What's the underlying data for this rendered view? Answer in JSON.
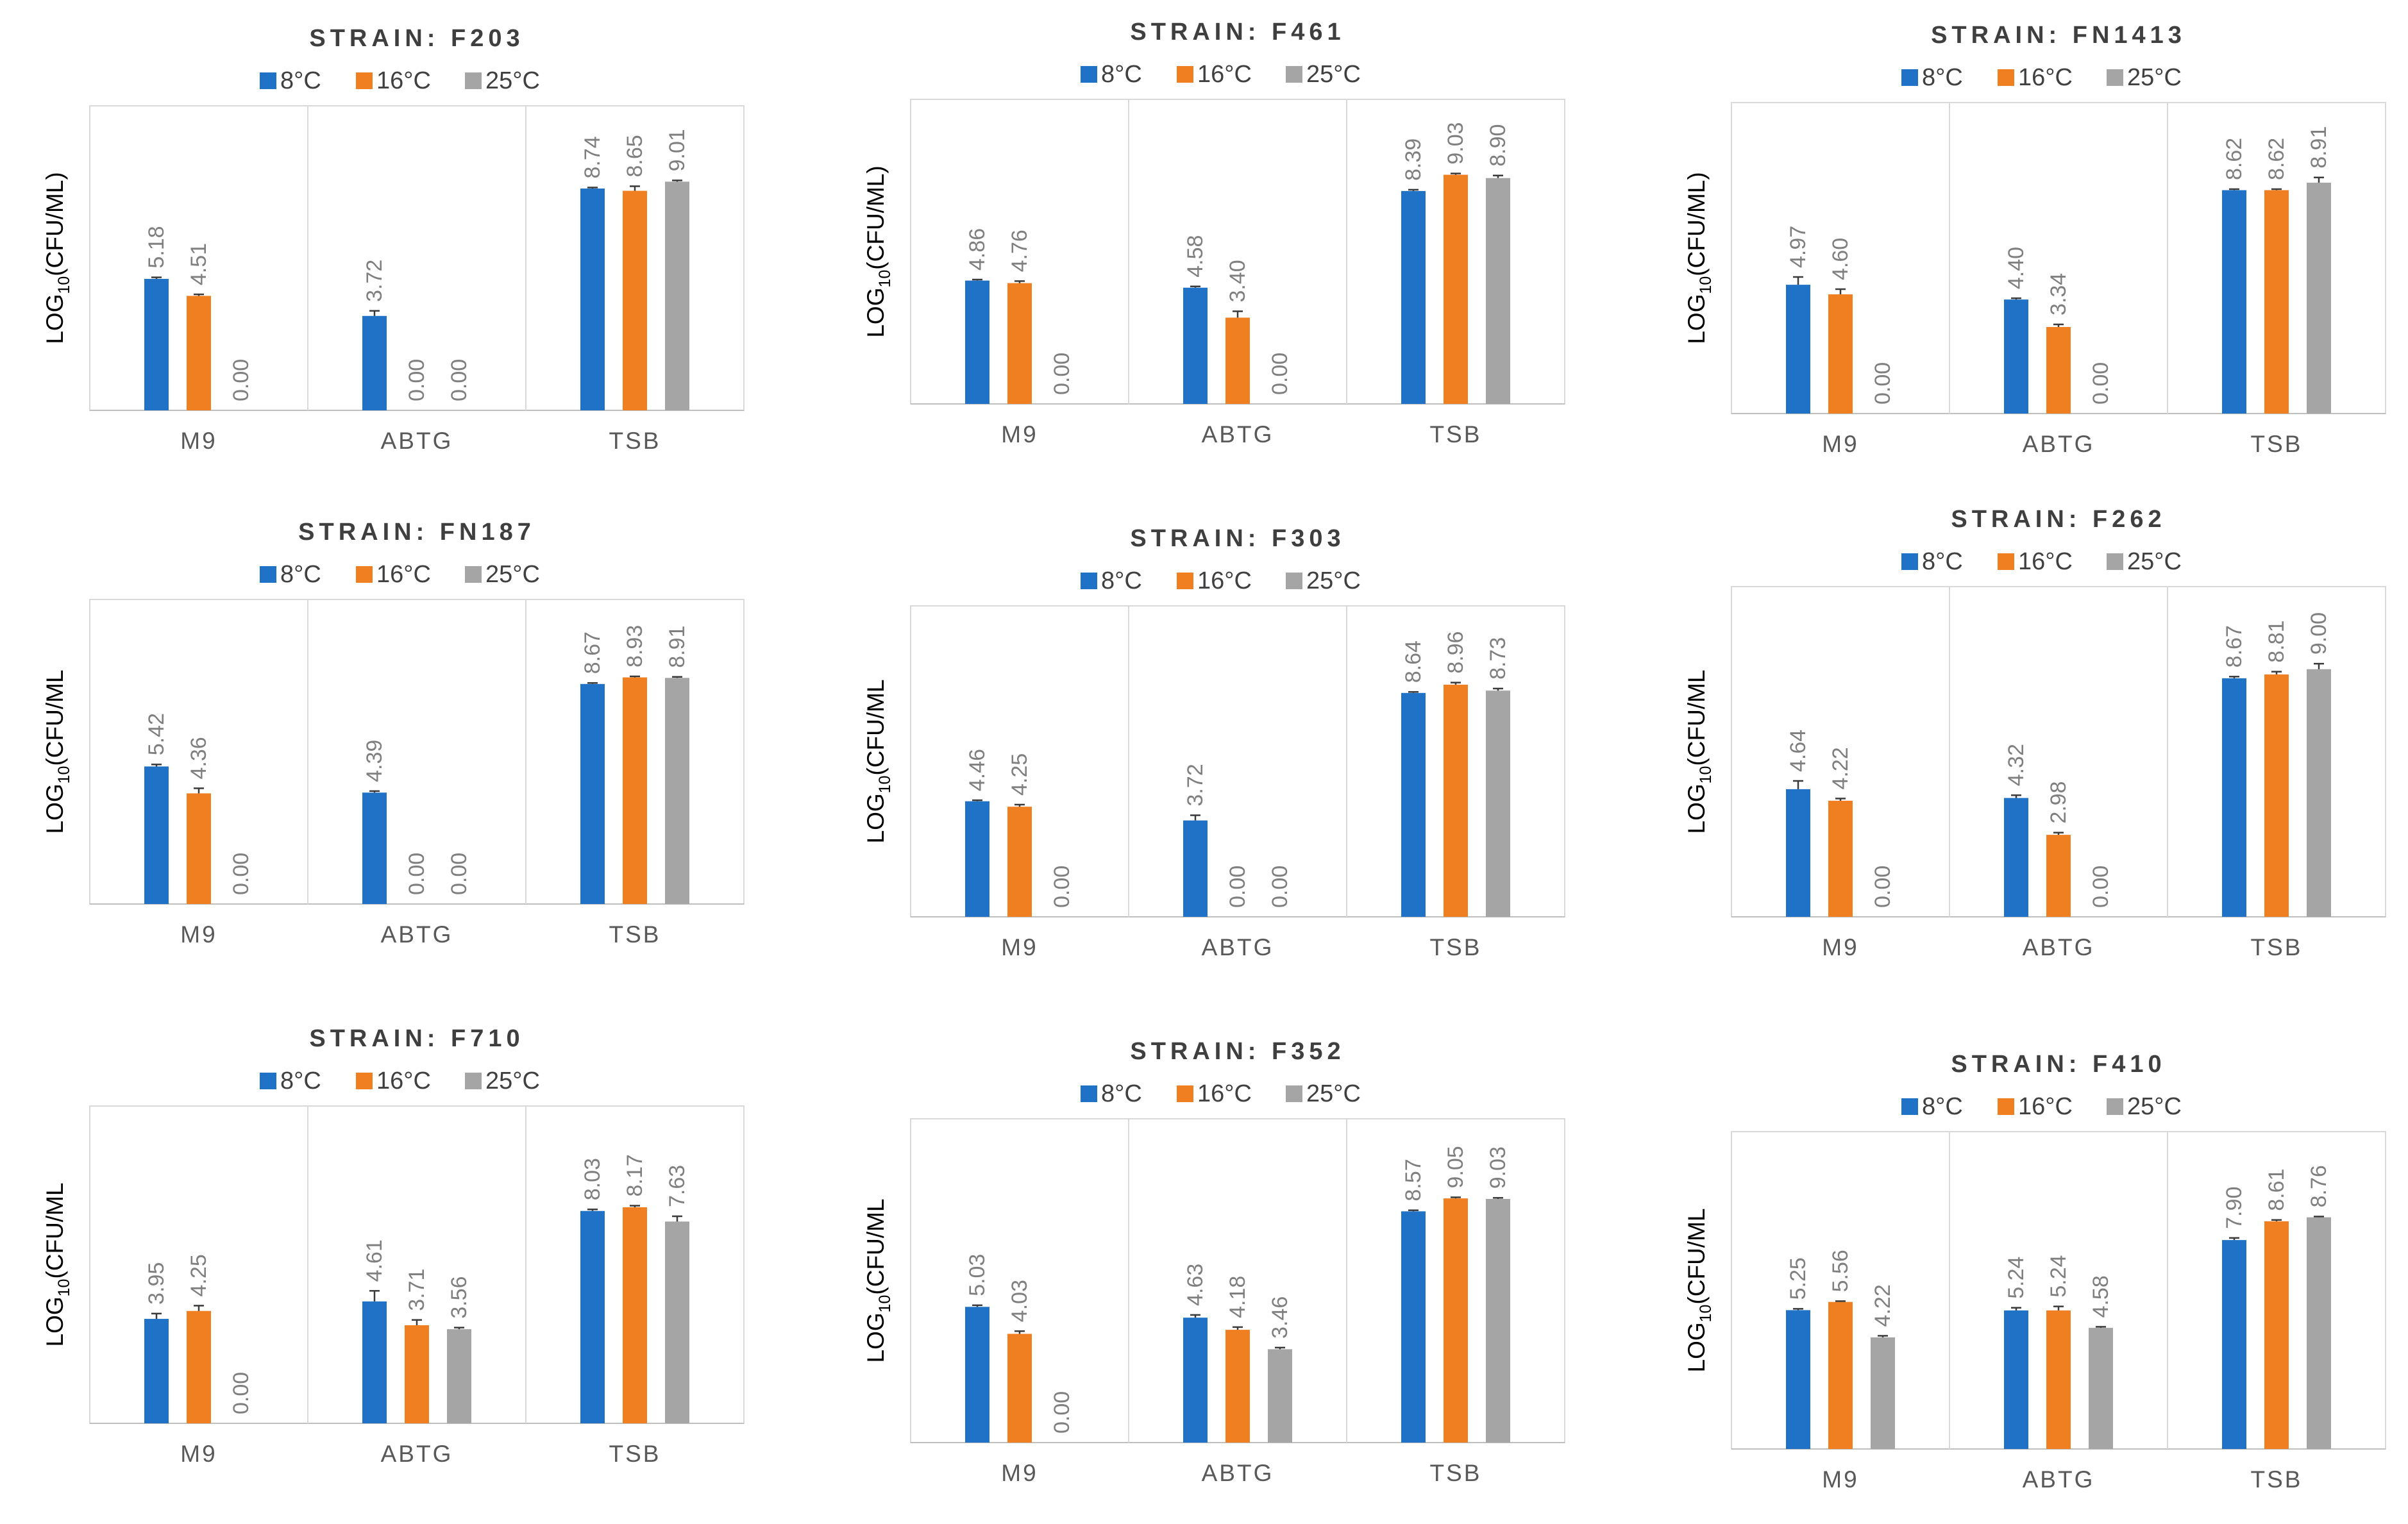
{
  "colors": {
    "c8": "#1f72c6",
    "c16": "#f07f22",
    "c25": "#a5a5a5"
  },
  "chart_data": [
    {
      "type": "bar",
      "title": "STRAIN:  F203",
      "ylabel_main": "LOG",
      "ylabel_sub": "10",
      "ylabel_rest": "(CFU/ML)",
      "categories": [
        "M9",
        "ABTG",
        "TSB"
      ],
      "legend": [
        "8°C",
        "16°C",
        "25°C"
      ],
      "series": [
        {
          "name": "8°C",
          "values": [
            5.18,
            3.72,
            8.74
          ],
          "labels": [
            "5.18",
            "3.72",
            "8.74"
          ],
          "err": [
            0.06,
            0.2,
            0.04
          ]
        },
        {
          "name": "16°C",
          "values": [
            4.51,
            0.0,
            8.65
          ],
          "labels": [
            "4.51",
            "0.00",
            "8.65"
          ],
          "err": [
            0.06,
            0,
            0.18
          ]
        },
        {
          "name": "25°C",
          "values": [
            0.0,
            0.0,
            9.01
          ],
          "labels": [
            "0.00",
            "0.00",
            "9.01"
          ],
          "err": [
            0,
            0,
            0.05
          ]
        }
      ],
      "ylim": [
        0,
        12
      ]
    },
    {
      "type": "bar",
      "title": "STRAIN:  F461",
      "ylabel_main": "LOG",
      "ylabel_sub": "10",
      "ylabel_rest": "(CFU/ML)",
      "categories": [
        "M9",
        "ABTG",
        "TSB"
      ],
      "legend": [
        "8°C",
        "16°C",
        "25°C"
      ],
      "series": [
        {
          "name": "8°C",
          "values": [
            4.86,
            4.58,
            8.39
          ],
          "labels": [
            "4.86",
            "4.58",
            "8.39"
          ],
          "err": [
            0.04,
            0.05,
            0.05
          ]
        },
        {
          "name": "16°C",
          "values": [
            4.76,
            3.4,
            9.03
          ],
          "labels": [
            "4.76",
            "3.40",
            "9.03"
          ],
          "err": [
            0.08,
            0.25,
            0.05
          ]
        },
        {
          "name": "25°C",
          "values": [
            0.0,
            0.0,
            8.9
          ],
          "labels": [
            "0.00",
            "0.00",
            "8.90"
          ],
          "err": [
            0,
            0,
            0.1
          ]
        }
      ],
      "ylim": [
        0,
        12
      ]
    },
    {
      "type": "bar",
      "title": "STRAIN:  FN1413",
      "ylabel_main": "LOG",
      "ylabel_sub": "10",
      "ylabel_rest": "(CFU/ML)",
      "categories": [
        "M9",
        "ABTG",
        "TSB"
      ],
      "legend": [
        "8°C",
        "16°C",
        "25°C"
      ],
      "series": [
        {
          "name": "8°C",
          "values": [
            4.97,
            4.4,
            8.62
          ],
          "labels": [
            "4.97",
            "4.40",
            "8.62"
          ],
          "err": [
            0.3,
            0.05,
            0.04
          ]
        },
        {
          "name": "16°C",
          "values": [
            4.6,
            3.34,
            8.62
          ],
          "labels": [
            "4.60",
            "3.34",
            "8.62"
          ],
          "err": [
            0.2,
            0.1,
            0.04
          ]
        },
        {
          "name": "25°C",
          "values": [
            0.0,
            0.0,
            8.91
          ],
          "labels": [
            "0.00",
            "0.00",
            "8.91"
          ],
          "err": [
            0,
            0,
            0.2
          ]
        }
      ],
      "ylim": [
        0,
        12
      ]
    },
    {
      "type": "bar",
      "title": "STRAIN:  FN187",
      "ylabel_main": "LOG",
      "ylabel_sub": "10",
      "ylabel_rest": "(CFU/ML",
      "categories": [
        "M9",
        "ABTG",
        "TSB"
      ],
      "legend": [
        "8°C",
        "16°C",
        "25°C"
      ],
      "series": [
        {
          "name": "8°C",
          "values": [
            5.42,
            4.39,
            8.67
          ],
          "labels": [
            "5.42",
            "4.39",
            "8.67"
          ],
          "err": [
            0.08,
            0.06,
            0.04
          ]
        },
        {
          "name": "16°C",
          "values": [
            4.36,
            0.0,
            8.93
          ],
          "labels": [
            "4.36",
            "0.00",
            "8.93"
          ],
          "err": [
            0.2,
            0,
            0.04
          ]
        },
        {
          "name": "25°C",
          "values": [
            0.0,
            0.0,
            8.91
          ],
          "labels": [
            "0.00",
            "0.00",
            "8.91"
          ],
          "err": [
            0,
            0,
            0.04
          ]
        }
      ],
      "ylim": [
        0,
        12
      ]
    },
    {
      "type": "bar",
      "title": "STRAIN:  F303",
      "ylabel_main": "LOG",
      "ylabel_sub": "10",
      "ylabel_rest": "(CFU/ML",
      "categories": [
        "M9",
        "ABTG",
        "TSB"
      ],
      "legend": [
        "8°C",
        "16°C",
        "25°C"
      ],
      "series": [
        {
          "name": "8°C",
          "values": [
            4.46,
            3.72,
            8.64
          ],
          "labels": [
            "4.46",
            "3.72",
            "8.64"
          ],
          "err": [
            0.04,
            0.2,
            0.04
          ]
        },
        {
          "name": "16°C",
          "values": [
            4.25,
            0.0,
            8.96
          ],
          "labels": [
            "4.25",
            "0.00",
            "8.96"
          ],
          "err": [
            0.08,
            0,
            0.08
          ]
        },
        {
          "name": "25°C",
          "values": [
            0.0,
            0.0,
            8.73
          ],
          "labels": [
            "0.00",
            "0.00",
            "8.73"
          ],
          "err": [
            0,
            0,
            0.08
          ]
        }
      ],
      "ylim": [
        0,
        12
      ]
    },
    {
      "type": "bar",
      "title": "STRAIN:  F262",
      "ylabel_main": "LOG",
      "ylabel_sub": "10",
      "ylabel_rest": "(CFU/ML",
      "categories": [
        "M9",
        "ABTG",
        "TSB"
      ],
      "legend": [
        "8°C",
        "16°C",
        "25°C"
      ],
      "series": [
        {
          "name": "8°C",
          "values": [
            4.64,
            4.32,
            8.67
          ],
          "labels": [
            "4.64",
            "4.32",
            "8.67"
          ],
          "err": [
            0.3,
            0.1,
            0.06
          ]
        },
        {
          "name": "16°C",
          "values": [
            4.22,
            2.98,
            8.81
          ],
          "labels": [
            "4.22",
            "2.98",
            "8.81"
          ],
          "err": [
            0.08,
            0.08,
            0.1
          ]
        },
        {
          "name": "25°C",
          "values": [
            0.0,
            0.0,
            9.0
          ],
          "labels": [
            "0.00",
            "0.00",
            "9.00"
          ],
          "err": [
            0,
            0,
            0.2
          ]
        }
      ],
      "ylim": [
        0,
        12
      ]
    },
    {
      "type": "bar",
      "title": "STRAIN:  F710",
      "ylabel_main": "LOG",
      "ylabel_sub": "10",
      "ylabel_rest": "(CFU/ML",
      "categories": [
        "M9",
        "ABTG",
        "TSB"
      ],
      "legend": [
        "8°C",
        "16°C",
        "25°C"
      ],
      "series": [
        {
          "name": "8°C",
          "values": [
            3.95,
            4.61,
            8.03
          ],
          "labels": [
            "3.95",
            "4.61",
            "8.03"
          ],
          "err": [
            0.2,
            0.4,
            0.06
          ]
        },
        {
          "name": "16°C",
          "values": [
            4.25,
            3.71,
            8.17
          ],
          "labels": [
            "4.25",
            "3.71",
            "8.17"
          ],
          "err": [
            0.2,
            0.2,
            0.06
          ]
        },
        {
          "name": "25°C",
          "values": [
            0.0,
            3.56,
            7.63
          ],
          "labels": [
            "0.00",
            "3.56",
            "7.63"
          ],
          "err": [
            0,
            0.06,
            0.2
          ]
        }
      ],
      "ylim": [
        0,
        12
      ]
    },
    {
      "type": "bar",
      "title": "STRAIN:  F352",
      "ylabel_main": "LOG",
      "ylabel_sub": "10",
      "ylabel_rest": "(CFU/ML",
      "categories": [
        "M9",
        "ABTG",
        "TSB"
      ],
      "legend": [
        "8°C",
        "16°C",
        "25°C"
      ],
      "series": [
        {
          "name": "8°C",
          "values": [
            5.03,
            4.63,
            8.57
          ],
          "labels": [
            "5.03",
            "4.63",
            "8.57"
          ],
          "err": [
            0.06,
            0.1,
            0.04
          ]
        },
        {
          "name": "16°C",
          "values": [
            4.03,
            4.18,
            9.05
          ],
          "labels": [
            "4.03",
            "4.18",
            "9.05"
          ],
          "err": [
            0.1,
            0.1,
            0.04
          ]
        },
        {
          "name": "25°C",
          "values": [
            0.0,
            3.46,
            9.03
          ],
          "labels": [
            "0.00",
            "3.46",
            "9.03"
          ],
          "err": [
            0,
            0.06,
            0.04
          ]
        }
      ],
      "ylim": [
        0,
        12
      ]
    },
    {
      "type": "bar",
      "title": "STRAIN:  F410",
      "ylabel_main": "LOG",
      "ylabel_sub": "10",
      "ylabel_rest": "(CFU/ML",
      "categories": [
        "M9",
        "ABTG",
        "TSB"
      ],
      "legend": [
        "8°C",
        "16°C",
        "25°C"
      ],
      "series": [
        {
          "name": "8°C",
          "values": [
            5.25,
            5.24,
            7.9
          ],
          "labels": [
            "5.25",
            "5.24",
            "7.90"
          ],
          "err": [
            0.05,
            0.1,
            0.08
          ]
        },
        {
          "name": "16°C",
          "values": [
            5.56,
            5.24,
            8.61
          ],
          "labels": [
            "5.56",
            "5.24",
            "8.61"
          ],
          "err": [
            0.03,
            0.15,
            0.05
          ]
        },
        {
          "name": "25°C",
          "values": [
            4.22,
            4.58,
            8.76
          ],
          "labels": [
            "4.22",
            "4.58",
            "8.76"
          ],
          "err": [
            0.06,
            0.04,
            0.03
          ]
        }
      ],
      "ylim": [
        0,
        12
      ]
    }
  ]
}
